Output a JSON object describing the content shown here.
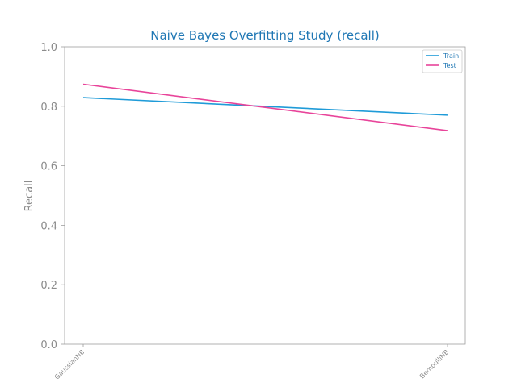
{
  "chart_data": {
    "type": "line",
    "title": "Naive Bayes Overfitting Study (recall)",
    "xlabel": "",
    "ylabel": "Recall",
    "categories": [
      "GaussianNB",
      "BernoulliNB"
    ],
    "ylim": [
      0.0,
      1.0
    ],
    "yticks": [
      "0.0",
      "0.2",
      "0.4",
      "0.6",
      "0.8",
      "1.0"
    ],
    "grid": false,
    "legend_position": "top-right",
    "series": [
      {
        "name": "Train",
        "values": [
          0.829,
          0.77
        ],
        "color": "#1f9bd8"
      },
      {
        "name": "Test",
        "values": [
          0.874,
          0.718
        ],
        "color": "#e8449a"
      }
    ]
  }
}
